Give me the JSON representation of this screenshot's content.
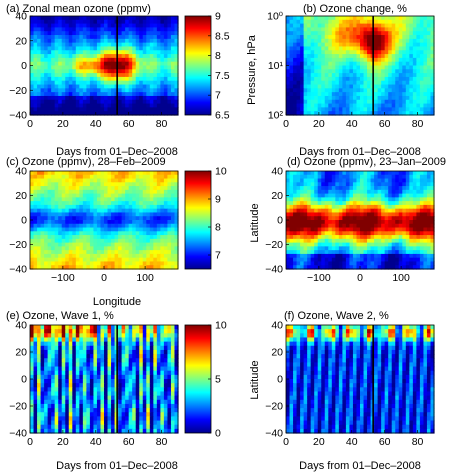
{
  "colormap": [
    "#00008f",
    "#0000ff",
    "#0080ff",
    "#00ffff",
    "#80ff80",
    "#ffff00",
    "#ff8000",
    "#ff0000",
    "#800000"
  ],
  "chart_data": [
    {
      "id": "a",
      "type": "heatmap",
      "title": "(a) Zonal mean ozone (ppmv)",
      "xlabel": "Days from 01–Dec–2008",
      "ylabel": "",
      "xlim": [
        0,
        90
      ],
      "ylim": [
        -40,
        40
      ],
      "xticks": [
        "0",
        "20",
        "40",
        "60",
        "80"
      ],
      "yticks": [
        "40",
        "20",
        "0",
        "−20",
        "−40"
      ],
      "vline_day": 53,
      "colorbar": {
        "range": [
          6.5,
          9
        ],
        "ticks": [
          "9",
          "8.5",
          "8",
          "7.5",
          "7",
          "6.5"
        ]
      }
    },
    {
      "id": "b",
      "type": "heatmap",
      "title": "(b) Ozone change, %",
      "xlabel": "Days from 01–Dec–2008",
      "ylabel": "Pressure, hPa",
      "xlim": [
        0,
        90
      ],
      "ylim": [
        100,
        1
      ],
      "yscale": "log",
      "xticks": [
        "0",
        "20",
        "40",
        "60",
        "80"
      ],
      "yticks": [
        "10⁰",
        "10¹",
        "10²"
      ],
      "vline_day": 53
    },
    {
      "id": "c",
      "type": "heatmap",
      "title": "(c) Ozone (ppmv), 28–Feb–2009",
      "xlabel": "Longitude",
      "ylabel": "",
      "xlim": [
        -180,
        180
      ],
      "ylim": [
        -40,
        40
      ],
      "xticks": [
        "−100",
        "0",
        "100"
      ],
      "yticks": [
        "40",
        "20",
        "0",
        "−20",
        "−40"
      ],
      "colorbar": {
        "range": [
          6.5,
          10
        ],
        "ticks": [
          "10",
          "9",
          "8",
          "7"
        ]
      }
    },
    {
      "id": "d",
      "type": "heatmap",
      "title": "(d) Ozone (ppmv), 23–Jan–2009",
      "xlabel": "",
      "ylabel": "Latitude",
      "xlim": [
        -180,
        180
      ],
      "ylim": [
        -40,
        40
      ],
      "xticks": [
        "−100",
        "0",
        "100"
      ],
      "yticks": [
        "40",
        "20",
        "0",
        "−20",
        "−40"
      ]
    },
    {
      "id": "e",
      "type": "heatmap",
      "title": "(e) Ozone, Wave 1, %",
      "xlabel": "Days from 01–Dec–2008",
      "ylabel": "",
      "xlim": [
        0,
        90
      ],
      "ylim": [
        -40,
        40
      ],
      "xticks": [
        "0",
        "20",
        "40",
        "60",
        "80"
      ],
      "yticks": [
        "40",
        "20",
        "0",
        "−20",
        "−40"
      ],
      "vline_day": 53,
      "colorbar": {
        "range": [
          0,
          10
        ],
        "ticks": [
          "10",
          "5",
          "0"
        ]
      }
    },
    {
      "id": "f",
      "type": "heatmap",
      "title": "(f) Ozone, Wave 2, %",
      "xlabel": "Days from 01–Dec–2008",
      "ylabel": "Latitude",
      "xlim": [
        0,
        90
      ],
      "ylim": [
        -40,
        40
      ],
      "xticks": [
        "0",
        "20",
        "40",
        "60",
        "80"
      ],
      "yticks": [
        "40",
        "20",
        "0",
        "−20",
        "−40"
      ],
      "vline_day": 53
    }
  ]
}
